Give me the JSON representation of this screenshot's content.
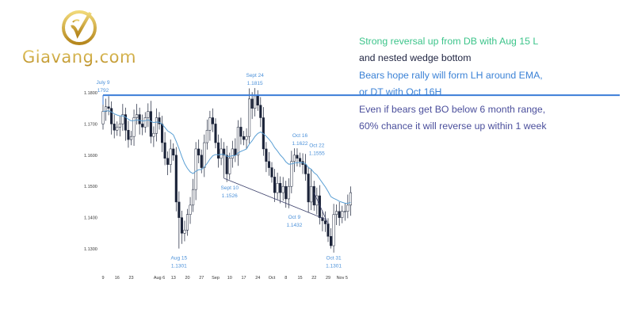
{
  "logo": {
    "text": "Giavang.com"
  },
  "notes": [
    {
      "text": "Strong reversal up from DB with Aug 15 L",
      "color": "#3cc48a"
    },
    {
      "text": "and nested wedge bottom",
      "color": "#1e2340"
    },
    {
      "text": "Bears hope rally will form LH around EMA,",
      "color": "#3b82d6"
    },
    {
      "text": "or DT with Oct 16H",
      "color": "#3b82d6"
    },
    {
      "text": "Even if bears get BO below 6 month range,",
      "color": "#4b4f9c"
    },
    {
      "text": "60% chance it will reverse up within 1 week",
      "color": "#4b4f9c"
    }
  ],
  "chart_data": {
    "type": "candlestick",
    "ylim": [
      1.127,
      1.184
    ],
    "yticks": [
      "1.1800",
      "1.1700",
      "1.1600",
      "1.1500",
      "1.1400",
      "1.1300"
    ],
    "ytick_values": [
      1.18,
      1.17,
      1.16,
      1.15,
      1.14,
      1.13
    ],
    "xticks": [
      {
        "label": "9",
        "index": 0
      },
      {
        "label": "16",
        "index": 5
      },
      {
        "label": "23",
        "index": 10
      },
      {
        "label": "Aug 6",
        "index": 20
      },
      {
        "label": "13",
        "index": 25
      },
      {
        "label": "20",
        "index": 30
      },
      {
        "label": "27",
        "index": 35
      },
      {
        "label": "Sep",
        "index": 40
      },
      {
        "label": "10",
        "index": 45
      },
      {
        "label": "17",
        "index": 50
      },
      {
        "label": "24",
        "index": 55
      },
      {
        "label": "Oct",
        "index": 60
      },
      {
        "label": "8",
        "index": 65
      },
      {
        "label": "15",
        "index": 70
      },
      {
        "label": "22",
        "index": 75
      },
      {
        "label": "29",
        "index": 80
      },
      {
        "label": "Nov 5",
        "index": 85
      }
    ],
    "first_open": 1.17,
    "closes": [
      1.174,
      1.1755,
      1.175,
      1.17,
      1.168,
      1.169,
      1.17,
      1.173,
      1.168,
      1.165,
      1.166,
      1.172,
      1.173,
      1.17,
      1.169,
      1.172,
      1.174,
      1.166,
      1.167,
      1.172,
      1.17,
      1.164,
      1.159,
      1.157,
      1.162,
      1.16,
      1.145,
      1.14,
      1.135,
      1.136,
      1.141,
      1.144,
      1.149,
      1.162,
      1.16,
      1.156,
      1.164,
      1.168,
      1.172,
      1.17,
      1.164,
      1.159,
      1.162,
      1.16,
      1.154,
      1.159,
      1.162,
      1.16,
      1.169,
      1.166,
      1.165,
      1.166,
      1.178,
      1.175,
      1.179,
      1.176,
      1.172,
      1.162,
      1.158,
      1.156,
      1.153,
      1.148,
      1.151,
      1.148,
      1.15,
      1.146,
      1.15,
      1.158,
      1.16,
      1.159,
      1.158,
      1.157,
      1.154,
      1.145,
      1.15,
      1.144,
      1.147,
      1.14,
      1.139,
      1.138,
      1.134,
      1.131,
      1.141,
      1.142,
      1.14,
      1.142,
      1.142,
      1.144,
      1.148
    ],
    "extremes": [
      {
        "index": 0,
        "high": 1.1792
      },
      {
        "index": 27,
        "low": 1.1301
      },
      {
        "index": 43,
        "low": 1.1526
      },
      {
        "index": 54,
        "high": 1.1815
      },
      {
        "index": 65,
        "low": 1.1432
      },
      {
        "index": 69,
        "high": 1.1622
      },
      {
        "index": 74,
        "high": 1.1555
      },
      {
        "index": 81,
        "low": 1.1301
      },
      {
        "index": 88,
        "high": 1.15
      }
    ],
    "ema_period": 20,
    "resistance_level": 1.1792,
    "wedge_lines": [
      {
        "from": [
          43,
          1.1526
        ],
        "to": [
          79,
          1.1395
        ]
      },
      {
        "from": [
          75,
          1.148
        ],
        "to": [
          80,
          1.138
        ]
      }
    ],
    "annotations": [
      {
        "date": "July 9",
        "value": "1792",
        "index": 0,
        "pos": "above",
        "price": 1.1792
      },
      {
        "date": "Sept 24",
        "value": "1.1815",
        "index": 54,
        "pos": "above",
        "price": 1.1815
      },
      {
        "date": "Aug 15",
        "value": "1.1301",
        "index": 27,
        "pos": "below",
        "price": 1.1301
      },
      {
        "date": "Sept 10",
        "value": "1.1526",
        "index": 45,
        "pos": "below",
        "price": 1.1526
      },
      {
        "date": "Oct 9",
        "value": "1.1432",
        "index": 68,
        "pos": "below",
        "price": 1.1432
      },
      {
        "date": "Oct 16",
        "value": "1.1622",
        "index": 70,
        "pos": "above",
        "price": 1.1622
      },
      {
        "date": "Oct 22",
        "value": "1.1555",
        "index": 76,
        "pos": "above",
        "price": 1.159
      },
      {
        "date": "Oct 31",
        "value": "1.1301",
        "index": 82,
        "pos": "below",
        "price": 1.1301
      }
    ],
    "colors": {
      "bear": "#1a2238",
      "bull": "#ffffff",
      "ema": "#5a9fd4",
      "level": "#3b7dd8",
      "annotation": "#4a90d9",
      "wedge": "#3a3f6a"
    }
  }
}
